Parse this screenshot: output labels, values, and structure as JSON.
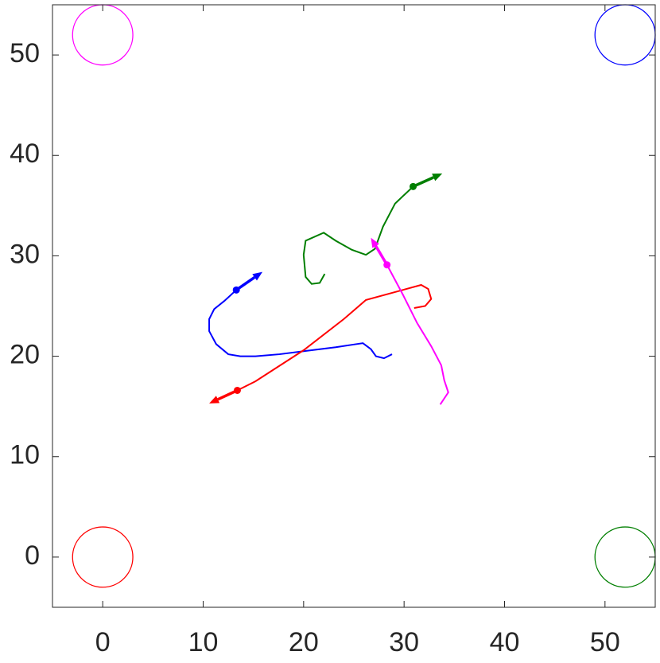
{
  "chart_data": {
    "type": "trajectory",
    "xlim": [
      -5,
      55
    ],
    "ylim": [
      -5,
      55
    ],
    "xticks": [
      0,
      10,
      20,
      30,
      40,
      50
    ],
    "yticks": [
      0,
      10,
      20,
      30,
      40,
      50
    ],
    "goals": [
      {
        "x": 0,
        "y": 0,
        "r": 3,
        "color": "#ff0000"
      },
      {
        "x": 0,
        "y": 52,
        "r": 3,
        "color": "#ff00ff"
      },
      {
        "x": 52,
        "y": 52,
        "r": 3,
        "color": "#0000ff"
      },
      {
        "x": 52,
        "y": 0,
        "r": 3,
        "color": "#007f00"
      }
    ],
    "series": [
      {
        "color": "#0000ff",
        "x": [
          28.8,
          28.0,
          27.2,
          26.7,
          25.9,
          25.2,
          23.2,
          20.0,
          17.6,
          15.2,
          13.7,
          12.5,
          11.3,
          10.6,
          10.6,
          11.1,
          12.1,
          13.3
        ],
        "y": [
          20.2,
          19.8,
          20.0,
          20.7,
          21.3,
          21.2,
          20.9,
          20.5,
          20.2,
          20.0,
          20.0,
          20.2,
          21.2,
          22.5,
          23.7,
          24.7,
          25.5,
          26.6
        ],
        "arrow": {
          "x": 15.9,
          "y": 28.4
        }
      },
      {
        "color": "#ff0000",
        "x": [
          31.0,
          32.1,
          32.7,
          32.4,
          31.7,
          26.2,
          24.0,
          20.0,
          15.2,
          13.4
        ],
        "y": [
          24.8,
          25.0,
          25.7,
          26.7,
          27.1,
          25.6,
          23.7,
          20.6,
          17.5,
          16.6
        ],
        "arrow": {
          "x": 10.6,
          "y": 15.3
        }
      },
      {
        "color": "#007f00",
        "x": [
          22.1,
          21.6,
          20.8,
          20.2,
          20.0,
          20.2,
          22.0,
          23.2,
          24.8,
          26.2,
          27.1,
          27.9,
          29.1,
          30.9
        ],
        "y": [
          28.2,
          27.3,
          27.2,
          27.9,
          30.1,
          31.5,
          32.3,
          31.5,
          30.6,
          30.1,
          30.7,
          32.9,
          35.2,
          36.9
        ],
        "arrow": {
          "x": 33.8,
          "y": 38.2
        }
      },
      {
        "color": "#ff00ff",
        "x": [
          33.6,
          34.4,
          34.0,
          33.7,
          32.7,
          31.3,
          29.9,
          28.3
        ],
        "y": [
          15.2,
          16.4,
          17.6,
          19.1,
          21.0,
          23.3,
          26.1,
          29.1
        ],
        "arrow": {
          "x": 26.7,
          "y": 31.8
        }
      }
    ]
  }
}
